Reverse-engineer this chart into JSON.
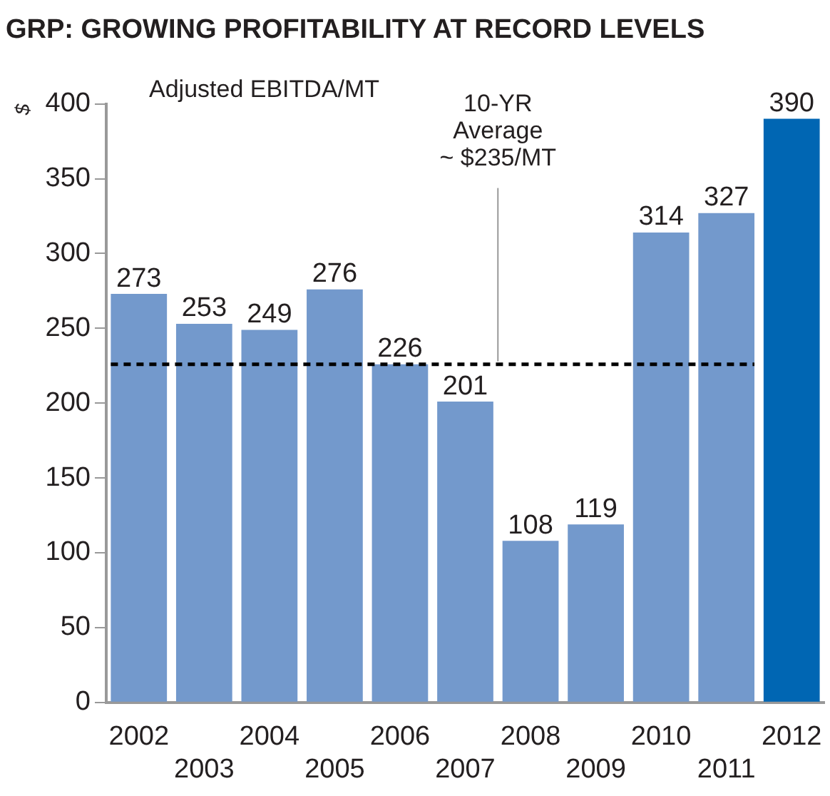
{
  "chart_data": {
    "type": "bar",
    "title": "GRP: GROWING PROFITABILITY AT RECORD LEVELS",
    "ylabel": "$",
    "categories": [
      "2002",
      "2003",
      "2004",
      "2005",
      "2006",
      "2007",
      "2008",
      "2009",
      "2010",
      "2011",
      "2012"
    ],
    "values": [
      273,
      253,
      249,
      276,
      226,
      201,
      108,
      119,
      314,
      327,
      390
    ],
    "colors": [
      "#7399cc",
      "#7399cc",
      "#7399cc",
      "#7399cc",
      "#7399cc",
      "#7399cc",
      "#7399cc",
      "#7399cc",
      "#7399cc",
      "#7399cc",
      "#0066b3"
    ],
    "ylim": [
      0,
      400
    ],
    "yticks": [
      0,
      50,
      100,
      150,
      200,
      250,
      300,
      350,
      400
    ],
    "grid": false,
    "legend": false,
    "data_labels": true,
    "annotations": [
      "Adjusted EBITDA/MT"
    ],
    "ref_lines": [
      {
        "axis": "y",
        "value": 226,
        "label": "10-YR Average ~ $235/MT",
        "color": "#000000",
        "line_style": "dashed"
      }
    ]
  }
}
